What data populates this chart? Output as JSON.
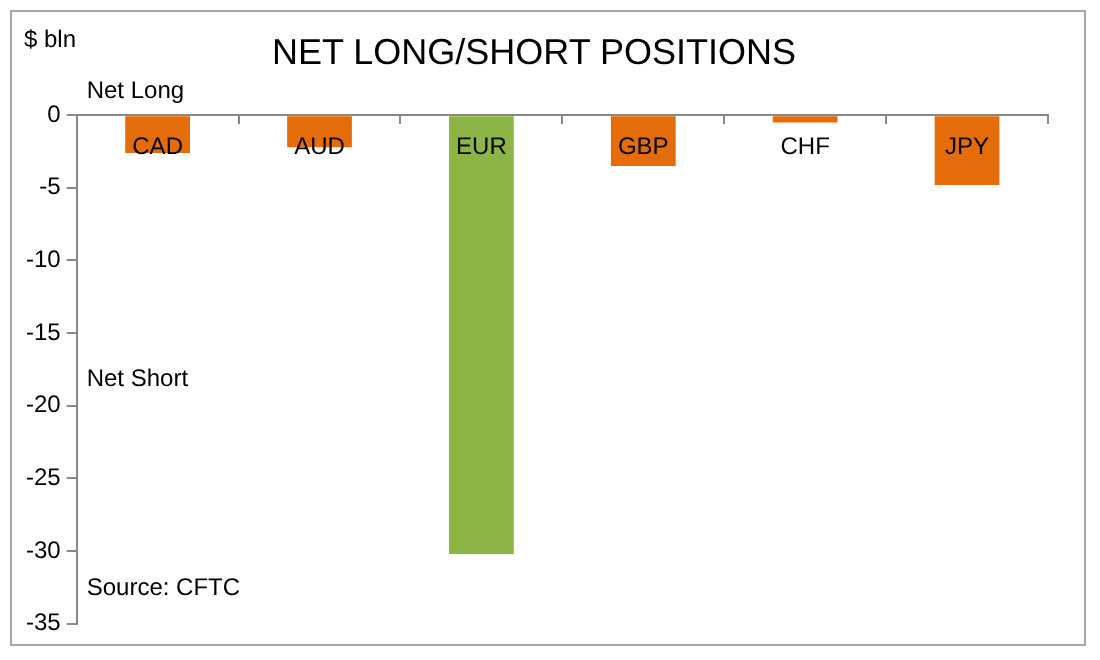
{
  "chart_data": {
    "type": "bar",
    "title": "NET LONG/SHORT POSITIONS",
    "ylabel": "$ bln",
    "categories": [
      "CAD",
      "AUD",
      "EUR",
      "GBP",
      "CHF",
      "JPY"
    ],
    "values": [
      -2.6,
      -2.2,
      -30.2,
      -3.5,
      -0.5,
      -4.8
    ],
    "colors": [
      "#e46c0a",
      "#e46c0a",
      "#8cb545",
      "#e46c0a",
      "#e46c0a",
      "#e46c0a"
    ],
    "ylim": [
      -35,
      0
    ],
    "yticks": [
      0,
      -5,
      -10,
      -15,
      -20,
      -25,
      -30,
      -35
    ],
    "annotations": [
      "Net Long",
      "Net Short",
      "Source: CFTC"
    ],
    "grid": false,
    "legend": false
  }
}
